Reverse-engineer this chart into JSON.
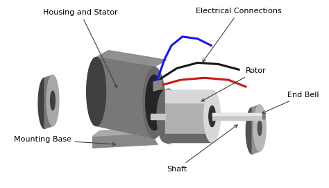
{
  "background_color": "#ffffff",
  "labels": {
    "housing_stator": "Housing and Stator",
    "electrical_connections": "Electrical Connections",
    "rotor": "Rotor",
    "end_bell": "End Bell",
    "mounting_base": "Mounting Base",
    "shaft": "Shaft"
  },
  "colors": {
    "stator_top": "#909090",
    "stator_body": "#787878",
    "stator_dark": "#404040",
    "stator_front": "#686868",
    "stator_light": "#a8a8a8",
    "stator_inner": "#252525",
    "rotor_body": "#b0b0b0",
    "rotor_dark": "#686868",
    "rotor_light": "#d8d8d8",
    "rotor_inner": "#303030",
    "shaft_color": "#c8c8c8",
    "shaft_dark": "#808080",
    "end_cap_body": "#909090",
    "end_cap_light": "#b8b8b8",
    "end_cap_dark": "#505050",
    "wire_blue": "#1515ff",
    "wire_black": "#151515",
    "wire_red": "#cc1515",
    "arrow_color": "#404040",
    "text_color": "#000000",
    "base_color": "#888888",
    "base_light": "#aaaaaa"
  },
  "figsize": [
    4.74,
    2.71
  ],
  "dpi": 100
}
